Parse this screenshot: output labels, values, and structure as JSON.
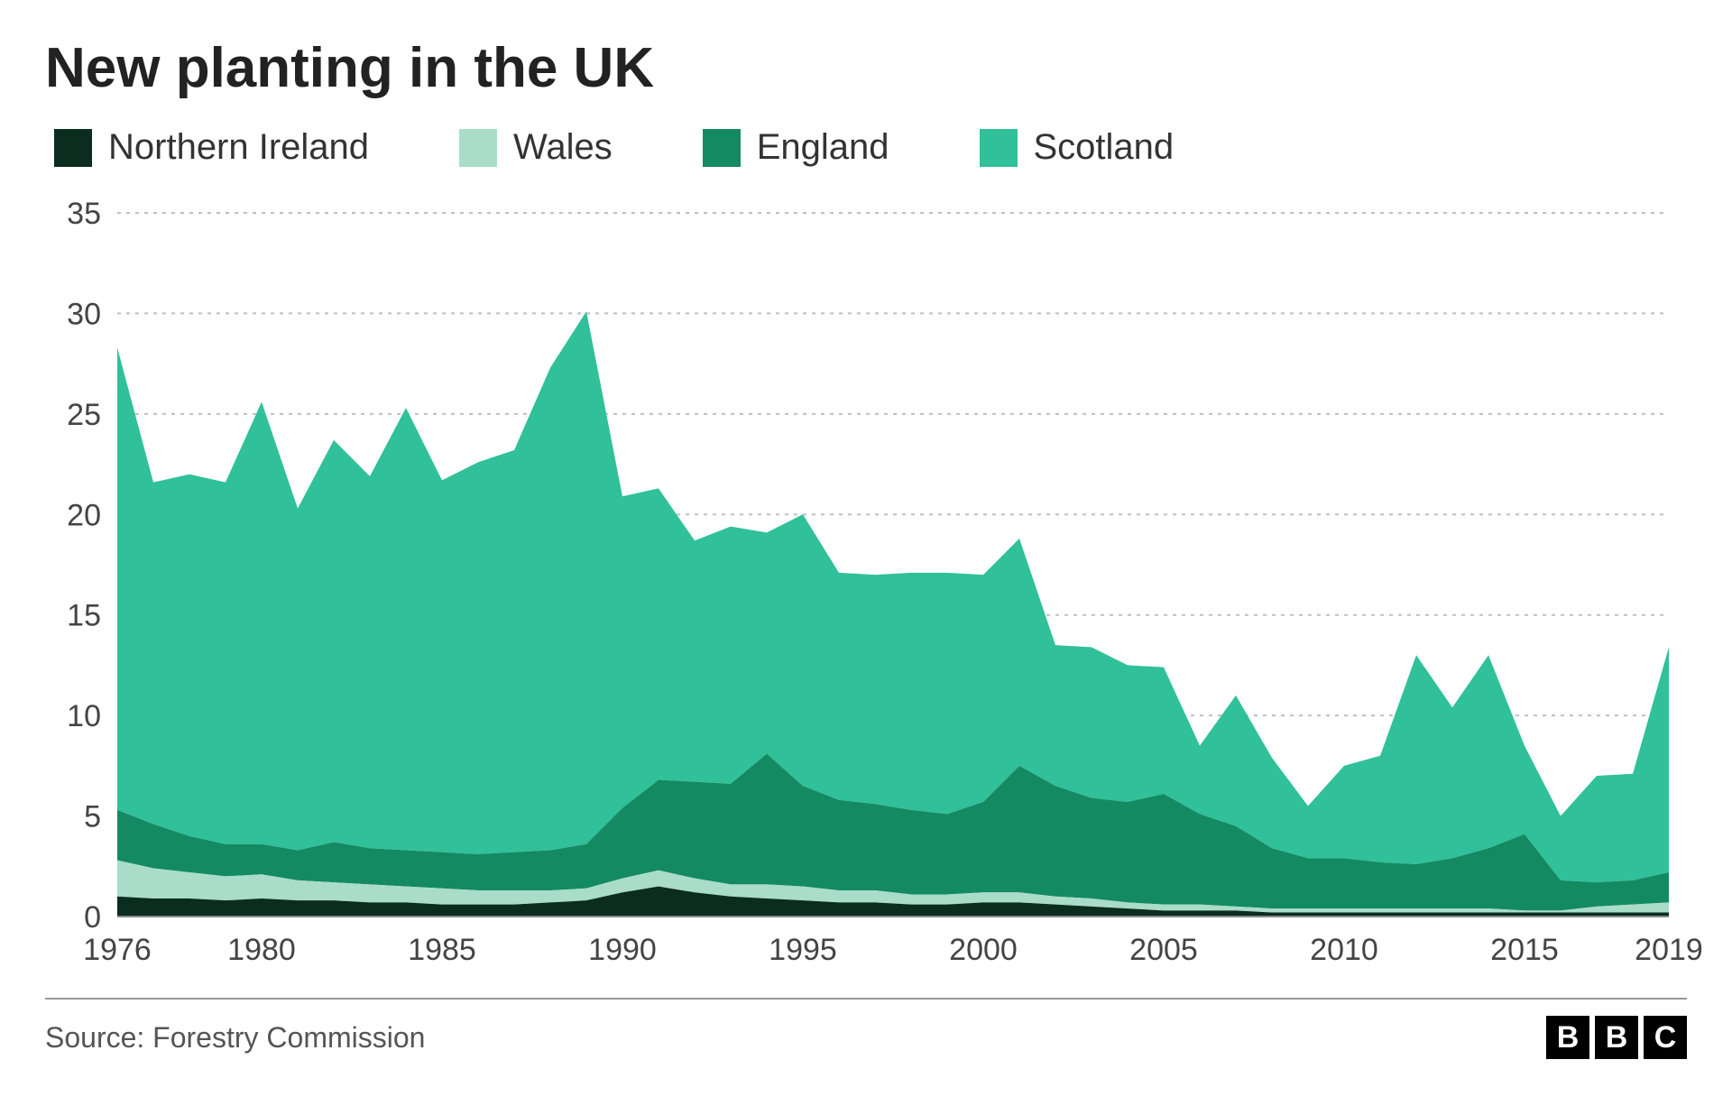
{
  "title": "New planting in the UK",
  "source_label": "Source: Forestry Commission",
  "bbc_letters": [
    "B",
    "B",
    "C"
  ],
  "chart": {
    "type": "area-stacked",
    "background_color": "#ffffff",
    "grid_color": "#bfbfbf",
    "axis_text_color": "#444444",
    "title_fontsize": 62,
    "label_fontsize": 34,
    "x": {
      "ticks": [
        1976,
        1980,
        1985,
        1990,
        1995,
        2000,
        2005,
        2010,
        2015,
        2019
      ],
      "min": 1976,
      "max": 2019
    },
    "y": {
      "ticks": [
        0,
        5,
        10,
        15,
        20,
        25,
        30,
        35
      ],
      "min": 0,
      "max": 35
    },
    "years": [
      1976,
      1977,
      1978,
      1979,
      1980,
      1981,
      1982,
      1983,
      1984,
      1985,
      1986,
      1987,
      1988,
      1989,
      1990,
      1991,
      1992,
      1993,
      1994,
      1995,
      1996,
      1997,
      1998,
      1999,
      2000,
      2001,
      2002,
      2003,
      2004,
      2005,
      2006,
      2007,
      2008,
      2009,
      2010,
      2011,
      2012,
      2013,
      2014,
      2015,
      2016,
      2017,
      2018,
      2019
    ],
    "series": [
      {
        "name": "Northern Ireland",
        "color": "#0a2d1f",
        "values": [
          1.0,
          0.9,
          0.9,
          0.8,
          0.9,
          0.8,
          0.8,
          0.7,
          0.7,
          0.6,
          0.6,
          0.6,
          0.7,
          0.8,
          1.2,
          1.5,
          1.2,
          1.0,
          0.9,
          0.8,
          0.7,
          0.7,
          0.6,
          0.6,
          0.7,
          0.7,
          0.6,
          0.5,
          0.4,
          0.3,
          0.3,
          0.3,
          0.2,
          0.2,
          0.2,
          0.2,
          0.2,
          0.2,
          0.2,
          0.2,
          0.2,
          0.2,
          0.2,
          0.2
        ]
      },
      {
        "name": "Wales",
        "color": "#a9dcc9",
        "values": [
          1.8,
          1.5,
          1.3,
          1.2,
          1.2,
          1.0,
          0.9,
          0.9,
          0.8,
          0.8,
          0.7,
          0.7,
          0.6,
          0.6,
          0.7,
          0.8,
          0.7,
          0.6,
          0.7,
          0.7,
          0.6,
          0.6,
          0.5,
          0.5,
          0.5,
          0.5,
          0.4,
          0.4,
          0.3,
          0.3,
          0.3,
          0.2,
          0.2,
          0.2,
          0.2,
          0.2,
          0.2,
          0.2,
          0.2,
          0.1,
          0.1,
          0.3,
          0.4,
          0.5
        ]
      },
      {
        "name": "England",
        "color": "#148a62",
        "values": [
          2.5,
          2.2,
          1.8,
          1.6,
          1.5,
          1.5,
          2.0,
          1.8,
          1.8,
          1.8,
          1.8,
          1.9,
          2.0,
          2.2,
          3.5,
          4.5,
          4.8,
          5.0,
          6.5,
          5.0,
          4.5,
          4.3,
          4.2,
          4.0,
          4.5,
          6.3,
          5.5,
          5.0,
          5.0,
          5.5,
          4.5,
          4.0,
          3.0,
          2.5,
          2.5,
          2.3,
          2.2,
          2.5,
          3.0,
          3.8,
          1.5,
          1.2,
          1.2,
          1.5
        ]
      },
      {
        "name": "Scotland",
        "color": "#30c09a",
        "values": [
          23.0,
          17.0,
          18.0,
          18.0,
          22.0,
          17.0,
          20.0,
          18.5,
          22.0,
          18.5,
          19.5,
          20.0,
          24.0,
          26.5,
          15.5,
          14.5,
          12.0,
          12.8,
          11.0,
          13.5,
          11.3,
          11.4,
          11.8,
          12.0,
          11.3,
          11.3,
          7.0,
          7.5,
          6.8,
          6.3,
          3.4,
          6.5,
          4.5,
          2.6,
          4.6,
          5.3,
          10.4,
          7.5,
          9.6,
          4.4,
          3.2,
          5.3,
          5.3,
          11.2
        ]
      }
    ],
    "legend": [
      {
        "label": "Northern Ireland",
        "color": "#0a2d1f"
      },
      {
        "label": "Wales",
        "color": "#a9dcc9"
      },
      {
        "label": "England",
        "color": "#148a62"
      },
      {
        "label": "Scotland",
        "color": "#30c09a"
      }
    ]
  }
}
